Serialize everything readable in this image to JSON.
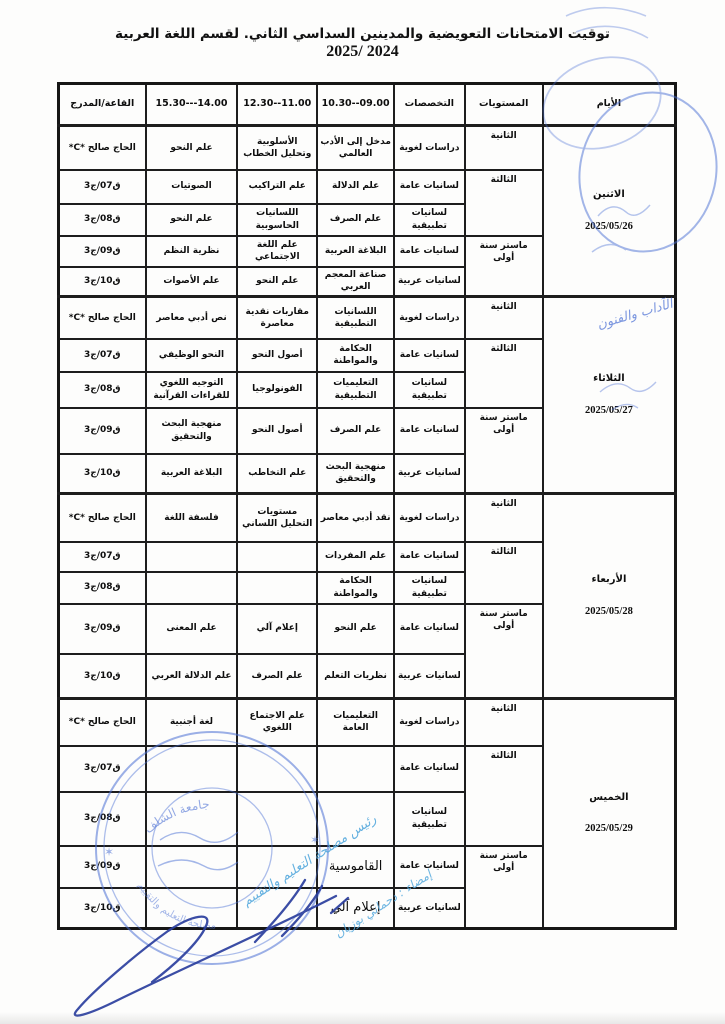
{
  "page": {
    "title_line1": "توقيت الامتحانات التعويضية والمدينين السداسي الثاني. لقسم اللغة العربية",
    "title_line2": "2025/ 2024"
  },
  "table": {
    "headers": {
      "days": "الأيام",
      "levels": "المستويات",
      "specializations": "التخصصات",
      "slot1": "10.30--09.00",
      "slot2": "12.30--11.00",
      "slot3": "15.30---14.00",
      "room": "القاعة/المدرج"
    },
    "days": [
      {
        "name": "الاثنين",
        "date": "2025/05/26",
        "rows": [
          {
            "level": "الثانية",
            "level_span": 1,
            "spec": "دراسات لغوية",
            "s1": "مدخل إلى الأدب العالمي",
            "s2": "الأسلوبية وتحليل الخطاب",
            "s3": "علم النحو",
            "room": "الحاج صالح *C*"
          },
          {
            "level": "الثالثة",
            "level_span": 2,
            "spec": "لسانيات عامة",
            "s1": "علم الدلالة",
            "s2": "علم التراكيب",
            "s3": "الصوتيات",
            "room": "ق07/ج3"
          },
          {
            "spec": "لسانيات تطبيقية",
            "s1": "علم الصرف",
            "s2": "اللسانيات الحاسوبية",
            "s3": "علم النحو",
            "room": "ق08/ج3"
          },
          {
            "level": "ماستر سنة أولى",
            "level_span": 2,
            "spec": "لسانيات عامة",
            "s1": "البلاغة العربية",
            "s2": "علم اللغة الاجتماعي",
            "s3": "نظرية النظم",
            "room": "ق09/ج3"
          },
          {
            "spec": "لسانيات عربية",
            "s1": "صناعة المعجم العربي",
            "s2": "علم النحو",
            "s3": "علم الأصوات",
            "room": "ق10/ج3"
          }
        ]
      },
      {
        "name": "الثلاثاء",
        "date": "2025/05/27",
        "rows": [
          {
            "level": "الثانية",
            "level_span": 1,
            "spec": "دراسات لغوية",
            "s1": "اللسانيات التطبيقية",
            "s2": "مقاربات نقدية معاصرة",
            "s3": "نص أدبي معاصر",
            "room": "الحاج صالح *C*"
          },
          {
            "level": "الثالثة",
            "level_span": 2,
            "spec": "لسانيات عامة",
            "s1": "الحكامة والمواطنة",
            "s2": "أصول النحو",
            "s3": "النحو الوظيفي",
            "room": "ق07/ج3"
          },
          {
            "spec": "لسانيات تطبيقية",
            "s1": "التعليميات التطبيقية",
            "s2": "الفونولوجيا",
            "s3": "التوجيه اللغوي للقراءات القرآنية",
            "room": "ق08/ج3"
          },
          {
            "level": "ماستر سنة أولى",
            "level_span": 2,
            "spec": "لسانيات عامة",
            "s1": "علم الصرف",
            "s2": "أصول النحو",
            "s3": "منهجية البحث والتحقيق",
            "room": "ق09/ج3"
          },
          {
            "spec": "لسانيات عربية",
            "s1": "منهجية البحث والتحقيق",
            "s2": "علم التخاطب",
            "s3": "البلاغة العربية",
            "room": "ق10/ج3"
          }
        ]
      },
      {
        "name": "الأربعاء",
        "date": "2025/05/28",
        "rows": [
          {
            "level": "الثانية",
            "level_span": 1,
            "spec": "دراسات لغوية",
            "s1": "نقد أدبي معاصر",
            "s2": "مستويات التحليل اللساني",
            "s3": "فلسفة اللغة",
            "room": "الحاج صالح *C*"
          },
          {
            "level": "الثالثة",
            "level_span": 2,
            "spec": "لسانيات عامة",
            "s1": "علم المفردات",
            "s2": "",
            "s3": "",
            "room": "ق07/ج3"
          },
          {
            "spec": "لسانيات تطبيقية",
            "s1": "الحكامة والمواطنة",
            "s2": "",
            "s3": "",
            "room": "ق08/ج3"
          },
          {
            "level": "ماستر سنة أولى",
            "level_span": 2,
            "spec": "لسانيات عامة",
            "s1": "علم النحو",
            "s2": "إعلام آلي",
            "s3": "علم المعنى",
            "room": "ق09/ج3"
          },
          {
            "spec": "لسانيات عربية",
            "s1": "نظريات التعلم",
            "s2": "علم الصرف",
            "s3": "علم الدلالة العربي",
            "room": "ق10/ج3"
          }
        ]
      },
      {
        "name": "الخميس",
        "date": "2025/05/29",
        "rows": [
          {
            "level": "الثانية",
            "level_span": 1,
            "spec": "دراسات لغوية",
            "s1": "التعليميات العامة",
            "s2": "علم الاجتماع اللغوي",
            "s3": "لغة أجنبية",
            "room": "الحاج صالح *C*"
          },
          {
            "level": "الثالثة",
            "level_span": 2,
            "spec": "لسانيات عامة",
            "s1": "",
            "s2": "",
            "s3": "",
            "room": "ق07/ج3"
          },
          {
            "spec": "لسانيات تطبيقية",
            "s1": "",
            "s2": "",
            "s3": "",
            "room": "ق08/ج3"
          },
          {
            "level": "ماستر سنة أولى",
            "level_span": 2,
            "spec": "لسانيات عامة",
            "s1": "القاموسية",
            "s1_large": true,
            "s2": "",
            "s3": "",
            "room": "ق09/ج3"
          },
          {
            "spec": "لسانيات عربية",
            "s1": "إعلام آلي",
            "s1_large": true,
            "s2": "",
            "s3": "",
            "room": "ق10/ج3"
          }
        ]
      }
    ]
  },
  "stamps": {
    "ink_blue": "#4a6fd4",
    "light_blue": "#55a9dd",
    "signature_blue": "#2b3f9e",
    "round_stamp_arc_top": "جامعة الشلف",
    "round_stamp_arc_bottom": "مصلحة التعليم والتقييم",
    "faculty_script": "الآداب والفنون",
    "handwriting_line1": "رئيس مصلحة التعليم والتقييم",
    "handwriting_line2": "إمضاء : دحماني بوزيان"
  }
}
